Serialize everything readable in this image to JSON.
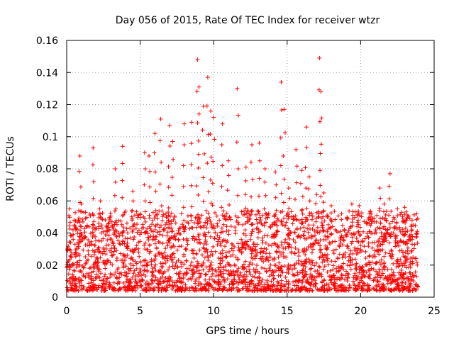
{
  "chart_data": {
    "type": "scatter",
    "title": "Day 056 of 2015, Rate Of TEC Index for receiver wtzr",
    "xlabel": "GPS time / hours",
    "ylabel": "ROTI / TECUs",
    "xlim": [
      0,
      25
    ],
    "ylim": [
      0,
      0.16
    ],
    "xticks": [
      "0",
      "5",
      "10",
      "15",
      "20",
      "25"
    ],
    "xtick_values": [
      0,
      5,
      10,
      15,
      20,
      25
    ],
    "yticks": [
      "0",
      "0.02",
      "0.04",
      "0.06",
      "0.08",
      "0.1",
      "0.12",
      "0.14",
      "0.16"
    ],
    "ytick_values": [
      0,
      0.02,
      0.04,
      0.06,
      0.08,
      0.1,
      0.12,
      0.14,
      0.16
    ],
    "grid": true,
    "marker": "plus",
    "color": "#ff0000",
    "series": [
      {
        "name": "ROTI",
        "x": [
          0.2,
          0.5,
          0.9,
          1.0,
          1.8,
          2.3,
          3.3,
          3.8,
          4.5,
          5.3,
          5.6,
          6.0,
          6.4,
          7.0,
          7.2,
          8.0,
          8.5,
          8.9,
          9.0,
          9.3,
          9.6,
          9.8,
          10.0,
          10.6,
          11.0,
          11.6,
          12.2,
          12.6,
          13.1,
          13.5,
          14.2,
          14.6,
          14.8,
          15.1,
          15.6,
          16.0,
          16.3,
          16.5,
          17.0,
          17.2,
          17.3,
          17.5,
          18.0,
          18.7,
          19.4,
          19.9,
          20.6,
          21.3,
          21.6,
          22.0,
          22.5,
          23.0,
          23.5,
          23.8
        ],
        "y": [
          0.055,
          0.048,
          0.088,
          0.058,
          0.093,
          0.06,
          0.08,
          0.094,
          0.066,
          0.09,
          0.088,
          0.102,
          0.111,
          0.107,
          0.097,
          0.108,
          0.109,
          0.148,
          0.131,
          0.119,
          0.137,
          0.116,
          0.112,
          0.108,
          0.085,
          0.13,
          0.081,
          0.095,
          0.096,
          0.08,
          0.078,
          0.134,
          0.117,
          0.068,
          0.092,
          0.079,
          0.106,
          0.075,
          0.064,
          0.149,
          0.128,
          0.065,
          0.057,
          0.052,
          0.058,
          0.057,
          0.052,
          0.068,
          0.058,
          0.077,
          0.055,
          0.056,
          0.048,
          0.052
        ]
      }
    ]
  }
}
